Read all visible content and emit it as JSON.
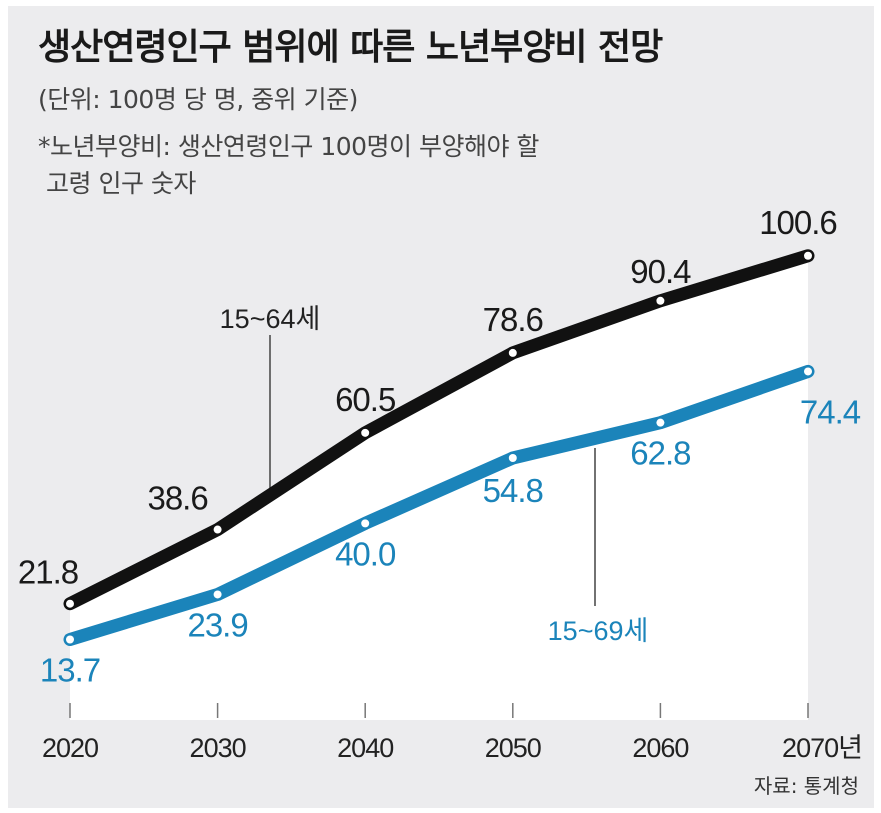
{
  "chart_data": {
    "type": "line",
    "title": "생산연령인구 범위에 따른 노년부양비 전망",
    "subtitle": "(단위: 100명 당 명, 중위 기준)",
    "note_lines": [
      "*노년부양비: 생산연령인구 100명이 부양해야 할",
      "고령 인구 숫자"
    ],
    "source": "자료: 통계청",
    "categories": [
      "2020",
      "2030",
      "2040",
      "2050",
      "2060",
      "2070년"
    ],
    "x": [
      2020,
      2030,
      2040,
      2050,
      2060,
      2070
    ],
    "ylim": [
      0,
      110
    ],
    "grid": false,
    "series": [
      {
        "name": "15~64세",
        "values": [
          21.8,
          38.6,
          60.5,
          78.6,
          90.4,
          100.6
        ],
        "labels": [
          "21.8",
          "38.6",
          "60.5",
          "78.6",
          "90.4",
          "100.6"
        ],
        "color": "#111111"
      },
      {
        "name": "15~69세",
        "values": [
          13.7,
          23.9,
          40.0,
          54.8,
          62.8,
          74.4
        ],
        "labels": [
          "13.7",
          "23.9",
          "40.0",
          "54.8",
          "62.8",
          "74.4"
        ],
        "color": "#1b84ba"
      }
    ],
    "colors": {
      "background": "#ececee",
      "area": "#ffffff"
    }
  }
}
